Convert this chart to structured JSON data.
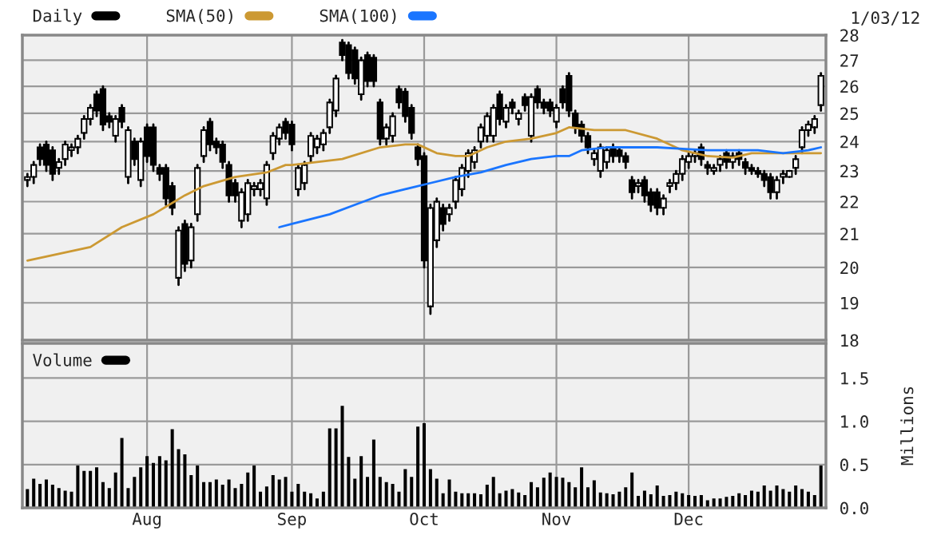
{
  "chart_data": [
    {
      "type": "candlestick",
      "categories": [
        null,
        null,
        null,
        null,
        null,
        null,
        null,
        null,
        null,
        null,
        null,
        null,
        null,
        null,
        null,
        null,
        null,
        null,
        null,
        null,
        null,
        null,
        null,
        null,
        null,
        null,
        null,
        null,
        null,
        null,
        null,
        null,
        null,
        null,
        null,
        null,
        null,
        null,
        null,
        null,
        null,
        null,
        null,
        null,
        null,
        null,
        null,
        null,
        null,
        null,
        null,
        null,
        null,
        null,
        null,
        null,
        null,
        null,
        null,
        null,
        null,
        null,
        null,
        null,
        null,
        null,
        null,
        null,
        null,
        null,
        null,
        null,
        null,
        null,
        null,
        null,
        null,
        null,
        null,
        null,
        null,
        null,
        null,
        null,
        null,
        null,
        null,
        null,
        null,
        null,
        null,
        null,
        null,
        null,
        null,
        null,
        null,
        null,
        null,
        null,
        null,
        null,
        null,
        null,
        null,
        null,
        null,
        null,
        null,
        null,
        null,
        null,
        null,
        null,
        null,
        null,
        null,
        null,
        null,
        null,
        null,
        null,
        null,
        null,
        null,
        null,
        null
      ],
      "series": [
        {
          "type": "candlestick",
          "name": "Daily",
          "color": "#000000",
          "ohlc": [
            [
              22.7,
              22.9,
              22.5,
              22.8
            ],
            [
              22.8,
              23.3,
              22.6,
              23.2
            ],
            [
              23.8,
              23.9,
              23.2,
              23.4
            ],
            [
              23.9,
              24.0,
              23.0,
              23.2
            ],
            [
              23.7,
              23.8,
              22.7,
              22.9
            ],
            [
              23.1,
              23.4,
              22.9,
              23.3
            ],
            [
              23.4,
              24.0,
              23.2,
              23.9
            ],
            [
              23.7,
              23.9,
              23.5,
              23.8
            ],
            [
              23.8,
              24.2,
              23.6,
              24.1
            ],
            [
              24.3,
              24.9,
              24.1,
              24.8
            ],
            [
              24.8,
              25.3,
              24.6,
              25.2
            ],
            [
              25.7,
              25.8,
              24.9,
              25.1
            ],
            [
              25.9,
              26.0,
              24.4,
              24.6
            ],
            [
              24.9,
              25.0,
              24.5,
              24.7
            ],
            [
              24.2,
              24.9,
              24.0,
              24.8
            ],
            [
              25.2,
              25.3,
              24.5,
              24.7
            ],
            [
              22.8,
              24.5,
              22.6,
              24.4
            ],
            [
              24.0,
              24.1,
              23.2,
              23.4
            ],
            [
              22.7,
              24.1,
              22.5,
              24.0
            ],
            [
              24.5,
              24.6,
              23.3,
              23.5
            ],
            [
              24.5,
              24.6,
              23.0,
              23.2
            ],
            [
              23.1,
              23.2,
              22.7,
              22.9
            ],
            [
              23.1,
              23.2,
              21.9,
              22.1
            ],
            [
              22.5,
              22.6,
              21.6,
              21.8
            ],
            [
              19.7,
              21.2,
              19.5,
              21.1
            ],
            [
              21.3,
              21.4,
              19.9,
              20.1
            ],
            [
              20.2,
              21.3,
              20.0,
              21.2
            ],
            [
              21.6,
              23.2,
              21.4,
              23.1
            ],
            [
              23.5,
              24.5,
              23.3,
              24.4
            ],
            [
              24.7,
              24.8,
              23.7,
              23.9
            ],
            [
              24.0,
              24.1,
              23.6,
              23.8
            ],
            [
              23.9,
              24.0,
              23.1,
              23.3
            ],
            [
              23.2,
              23.3,
              22.0,
              22.2
            ],
            [
              22.6,
              22.7,
              22.0,
              22.2
            ],
            [
              21.4,
              22.4,
              21.2,
              22.3
            ],
            [
              21.6,
              22.7,
              21.4,
              22.6
            ],
            [
              22.4,
              22.6,
              22.2,
              22.5
            ],
            [
              22.4,
              22.7,
              22.2,
              22.6
            ],
            [
              22.1,
              23.3,
              21.9,
              23.2
            ],
            [
              23.6,
              24.3,
              23.4,
              24.2
            ],
            [
              24.1,
              24.6,
              23.9,
              24.5
            ],
            [
              24.7,
              24.8,
              24.1,
              24.3
            ],
            [
              24.6,
              24.7,
              23.7,
              23.9
            ],
            [
              22.4,
              23.2,
              22.2,
              23.1
            ],
            [
              22.6,
              23.3,
              22.4,
              23.2
            ],
            [
              23.5,
              24.3,
              23.3,
              24.2
            ],
            [
              23.8,
              24.2,
              23.6,
              24.1
            ],
            [
              23.9,
              24.4,
              23.7,
              24.3
            ],
            [
              24.5,
              25.5,
              24.3,
              25.4
            ],
            [
              25.1,
              26.4,
              24.9,
              26.3
            ],
            [
              27.7,
              27.8,
              27.0,
              27.2
            ],
            [
              27.6,
              27.7,
              26.3,
              26.5
            ],
            [
              27.4,
              27.5,
              26.1,
              26.3
            ],
            [
              25.7,
              27.1,
              25.5,
              27.0
            ],
            [
              27.2,
              27.3,
              26.0,
              26.2
            ],
            [
              27.1,
              27.2,
              26.0,
              26.2
            ],
            [
              25.4,
              25.5,
              23.9,
              24.1
            ],
            [
              24.1,
              24.6,
              23.9,
              24.5
            ],
            [
              24.2,
              25.0,
              24.0,
              24.9
            ],
            [
              25.9,
              26.0,
              25.2,
              25.4
            ],
            [
              25.8,
              25.9,
              24.7,
              24.9
            ],
            [
              25.2,
              25.3,
              24.1,
              24.3
            ],
            [
              23.8,
              23.9,
              23.2,
              23.4
            ],
            [
              23.5,
              23.6,
              20.0,
              20.2
            ],
            [
              18.9,
              21.9,
              18.7,
              21.8
            ],
            [
              20.8,
              22.1,
              20.6,
              22.0
            ],
            [
              21.8,
              21.9,
              21.1,
              21.3
            ],
            [
              21.6,
              21.9,
              21.4,
              21.8
            ],
            [
              22.0,
              22.8,
              21.8,
              22.7
            ],
            [
              22.4,
              23.2,
              22.2,
              23.1
            ],
            [
              23.0,
              23.7,
              22.8,
              23.6
            ],
            [
              23.3,
              23.8,
              23.1,
              23.7
            ],
            [
              24.0,
              24.6,
              23.8,
              24.5
            ],
            [
              24.2,
              25.0,
              24.0,
              24.9
            ],
            [
              24.2,
              25.3,
              24.0,
              25.2
            ],
            [
              25.7,
              25.8,
              24.6,
              24.8
            ],
            [
              24.7,
              25.3,
              24.5,
              25.2
            ],
            [
              25.4,
              25.5,
              25.0,
              25.2
            ],
            [
              24.8,
              25.1,
              24.6,
              25.0
            ],
            [
              25.6,
              25.7,
              25.1,
              25.3
            ],
            [
              24.2,
              25.7,
              24.0,
              25.6
            ],
            [
              25.9,
              26.0,
              25.2,
              25.4
            ],
            [
              25.4,
              25.5,
              25.0,
              25.2
            ],
            [
              25.4,
              25.5,
              24.9,
              25.1
            ],
            [
              24.7,
              25.3,
              24.5,
              25.2
            ],
            [
              25.9,
              26.0,
              25.2,
              25.4
            ],
            [
              26.4,
              26.5,
              24.9,
              25.1
            ],
            [
              25.0,
              25.1,
              24.3,
              24.5
            ],
            [
              24.6,
              24.7,
              24.0,
              24.2
            ],
            [
              24.2,
              24.3,
              23.6,
              23.8
            ],
            [
              23.4,
              23.7,
              23.2,
              23.6
            ],
            [
              23.0,
              23.9,
              22.8,
              23.8
            ],
            [
              23.3,
              23.8,
              23.1,
              23.7
            ],
            [
              23.8,
              23.9,
              23.3,
              23.5
            ],
            [
              23.7,
              23.8,
              23.3,
              23.5
            ],
            [
              23.5,
              23.6,
              23.1,
              23.3
            ],
            [
              22.7,
              22.8,
              22.1,
              22.3
            ],
            [
              22.5,
              22.7,
              22.3,
              22.6
            ],
            [
              22.7,
              22.8,
              22.0,
              22.2
            ],
            [
              22.3,
              22.4,
              21.7,
              21.9
            ],
            [
              22.3,
              22.4,
              21.6,
              21.8
            ],
            [
              21.8,
              22.2,
              21.6,
              22.1
            ],
            [
              22.5,
              22.7,
              22.3,
              22.6
            ],
            [
              22.6,
              23.0,
              22.4,
              22.9
            ],
            [
              22.9,
              23.5,
              22.7,
              23.4
            ],
            [
              23.3,
              23.6,
              23.1,
              23.5
            ],
            [
              23.5,
              23.7,
              23.3,
              23.6
            ],
            [
              23.8,
              23.9,
              23.2,
              23.4
            ],
            [
              23.2,
              23.3,
              22.9,
              23.1
            ],
            [
              23.0,
              23.2,
              22.9,
              23.1
            ],
            [
              23.2,
              23.5,
              23.0,
              23.4
            ],
            [
              23.6,
              23.7,
              23.1,
              23.3
            ],
            [
              23.3,
              23.6,
              23.1,
              23.5
            ],
            [
              23.6,
              23.7,
              23.2,
              23.4
            ],
            [
              23.3,
              23.4,
              22.9,
              23.1
            ],
            [
              23.1,
              23.2,
              22.9,
              23.0
            ],
            [
              23.0,
              23.1,
              22.8,
              22.9
            ],
            [
              22.9,
              23.0,
              22.5,
              22.7
            ],
            [
              22.8,
              22.9,
              22.1,
              22.3
            ],
            [
              22.3,
              22.8,
              22.1,
              22.7
            ],
            [
              22.8,
              23.0,
              22.6,
              22.9
            ],
            [
              22.8,
              23.0,
              22.8,
              23.0
            ],
            [
              23.1,
              23.5,
              22.9,
              23.4
            ],
            [
              23.8,
              24.5,
              23.6,
              24.4
            ],
            [
              24.4,
              24.7,
              24.2,
              24.6
            ],
            [
              24.5,
              24.9,
              24.3,
              24.8
            ],
            [
              25.3,
              26.5,
              25.1,
              26.4
            ]
          ]
        },
        {
          "type": "line",
          "name": "SMA(50)",
          "color": "#cc9933",
          "values": [
            20.2,
            null,
            null,
            null,
            null,
            null,
            null,
            null,
            null,
            null,
            20.6,
            null,
            null,
            null,
            null,
            21.2,
            null,
            null,
            null,
            null,
            21.6,
            null,
            null,
            null,
            null,
            22.2,
            null,
            null,
            22.5,
            null,
            null,
            null,
            null,
            22.8,
            null,
            null,
            null,
            null,
            22.95,
            null,
            null,
            23.2,
            23.2,
            null,
            null,
            null,
            null,
            null,
            null,
            null,
            23.4,
            null,
            null,
            null,
            null,
            null,
            23.8,
            null,
            null,
            null,
            23.9,
            null,
            23.9,
            null,
            null,
            23.6,
            null,
            null,
            23.5,
            null,
            23.5,
            null,
            null,
            23.8,
            null,
            null,
            24.0,
            null,
            null,
            null,
            24.1,
            null,
            null,
            null,
            24.3,
            null,
            24.5,
            null,
            null,
            null,
            24.4,
            null,
            null,
            null,
            null,
            24.4,
            null,
            null,
            null,
            null,
            24.1,
            null,
            null,
            null,
            23.7,
            null,
            null,
            null,
            23.5,
            null,
            null,
            null,
            23.45,
            null,
            null,
            23.6,
            null,
            null,
            null,
            null,
            23.6,
            null,
            null,
            null,
            null,
            null,
            23.6
          ]
        },
        {
          "type": "line",
          "name": "SMA(100)",
          "color": "#1a75ff",
          "values": [
            null,
            null,
            null,
            null,
            null,
            null,
            null,
            null,
            null,
            null,
            null,
            null,
            null,
            null,
            null,
            null,
            null,
            null,
            null,
            null,
            null,
            null,
            null,
            null,
            null,
            null,
            null,
            null,
            null,
            null,
            null,
            null,
            null,
            null,
            null,
            null,
            null,
            null,
            null,
            null,
            21.2,
            null,
            21.3,
            null,
            null,
            null,
            null,
            null,
            21.6,
            null,
            null,
            null,
            21.9,
            null,
            null,
            null,
            22.2,
            null,
            null,
            null,
            22.4,
            null,
            null,
            null,
            22.6,
            null,
            null,
            null,
            22.8,
            null,
            null,
            null,
            22.95,
            null,
            null,
            null,
            23.2,
            null,
            null,
            null,
            23.4,
            null,
            null,
            null,
            23.5,
            null,
            23.5,
            null,
            23.7,
            null,
            null,
            null,
            23.8,
            null,
            null,
            null,
            23.8,
            null,
            null,
            null,
            23.8,
            null,
            null,
            null,
            23.75,
            null,
            null,
            null,
            23.7,
            null,
            null,
            null,
            23.7,
            null,
            null,
            null,
            23.7,
            null,
            null,
            null,
            23.6,
            null,
            null,
            null,
            23.7,
            null,
            23.8
          ]
        }
      ],
      "ylim": [
        18,
        28
      ],
      "yticks": [
        18,
        19,
        20,
        21,
        22,
        23,
        24,
        25,
        26,
        27,
        28
      ],
      "log": "y",
      "grid": true,
      "legend": "top",
      "tick_labels": "y",
      "annotations": [
        "1/03/12"
      ]
    },
    {
      "type": "bar",
      "categories": [
        null,
        null,
        null,
        null,
        null,
        null,
        null,
        null,
        null,
        null,
        null,
        null,
        null,
        null,
        null,
        null,
        null,
        null,
        null,
        "Aug",
        null,
        null,
        null,
        null,
        null,
        null,
        null,
        null,
        null,
        null,
        null,
        null,
        null,
        null,
        null,
        null,
        null,
        null,
        null,
        null,
        null,
        null,
        "Sep",
        null,
        null,
        null,
        null,
        null,
        null,
        null,
        null,
        null,
        null,
        null,
        null,
        null,
        null,
        null,
        null,
        null,
        null,
        null,
        null,
        "Oct",
        null,
        null,
        null,
        null,
        null,
        null,
        null,
        null,
        null,
        null,
        null,
        null,
        null,
        null,
        null,
        null,
        null,
        null,
        null,
        null,
        "Nov",
        null,
        null,
        null,
        null,
        null,
        null,
        null,
        null,
        null,
        null,
        null,
        null,
        null,
        null,
        null,
        null,
        null,
        null,
        null,
        null,
        "Dec",
        null,
        null,
        null,
        null,
        null,
        null,
        null,
        null,
        null,
        null,
        null,
        null,
        null,
        null,
        null,
        null,
        null,
        null,
        null,
        null,
        null
      ],
      "series": [
        {
          "name": "Volume",
          "color": "#000000",
          "values": [
            0.21,
            0.33,
            0.27,
            0.32,
            0.26,
            0.22,
            0.19,
            0.18,
            0.48,
            0.42,
            0.42,
            0.46,
            0.29,
            0.22,
            0.4,
            0.8,
            0.22,
            0.35,
            0.46,
            0.59,
            0.51,
            0.59,
            0.54,
            0.9,
            0.67,
            0.61,
            0.37,
            0.48,
            0.29,
            0.29,
            0.32,
            0.26,
            0.32,
            0.22,
            0.27,
            0.4,
            0.48,
            0.18,
            0.24,
            0.37,
            0.32,
            0.35,
            0.18,
            0.27,
            0.18,
            0.16,
            0.1,
            0.18,
            0.91,
            0.91,
            1.17,
            0.58,
            0.33,
            0.59,
            0.35,
            0.78,
            0.35,
            0.29,
            0.27,
            0.18,
            0.44,
            0.35,
            0.93,
            0.97,
            0.44,
            0.33,
            0.16,
            0.32,
            0.18,
            0.16,
            0.16,
            0.16,
            0.15,
            0.26,
            0.35,
            0.16,
            0.19,
            0.21,
            0.17,
            0.14,
            0.29,
            0.23,
            0.34,
            0.4,
            0.35,
            0.34,
            0.29,
            0.23,
            0.46,
            0.23,
            0.31,
            0.17,
            0.16,
            0.15,
            0.18,
            0.23,
            0.4,
            0.13,
            0.19,
            0.15,
            0.25,
            0.13,
            0.14,
            0.18,
            0.16,
            0.14,
            0.13,
            0.14,
            0.08,
            0.1,
            0.1,
            0.12,
            0.13,
            0.16,
            0.14,
            0.19,
            0.18,
            0.25,
            0.19,
            0.25,
            0.21,
            0.18,
            0.25,
            0.21,
            0.18,
            0.14,
            0.48
          ]
        }
      ],
      "ylim": [
        0,
        1.9
      ],
      "yticks": [
        {
          "value": 0,
          "label": "0.0"
        },
        {
          "value": 0.5,
          "label": "0.5"
        },
        {
          "value": 1.0,
          "label": "1.0"
        },
        {
          "value": 1.5,
          "label": "1.5"
        }
      ],
      "ylabel": "Millions",
      "grid": true,
      "legend": "top left"
    }
  ]
}
